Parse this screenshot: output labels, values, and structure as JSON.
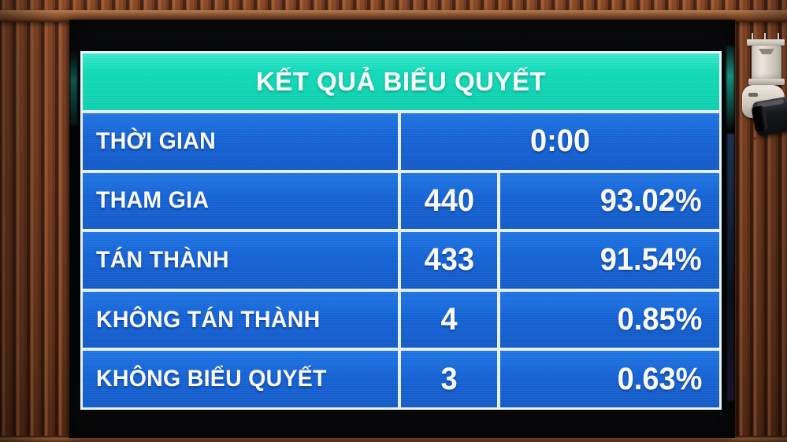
{
  "board": {
    "title": "KẾT QUẢ BIỂU QUYẾT",
    "time": {
      "label": "THỜI GIAN",
      "value": "0:00"
    },
    "rows": [
      {
        "label": "THAM GIA",
        "count": "440",
        "percent": "93.02%"
      },
      {
        "label": "TÁN THÀNH",
        "count": "433",
        "percent": "91.54%"
      },
      {
        "label": "KHÔNG TÁN THÀNH",
        "count": "4",
        "percent": "0.85%"
      },
      {
        "label": "KHÔNG BIỂU QUYẾT",
        "count": "3",
        "percent": "0.63%"
      }
    ]
  },
  "colors": {
    "header_bg": "#13ddba",
    "header_bg_light": "#3cecd0",
    "row_bg": "#1664d8",
    "row_bg_light": "#1f76e6",
    "grid_line": "#e9f3f6",
    "text": "#ffffff",
    "wood": "#7c4425",
    "bezel": "#070809"
  }
}
